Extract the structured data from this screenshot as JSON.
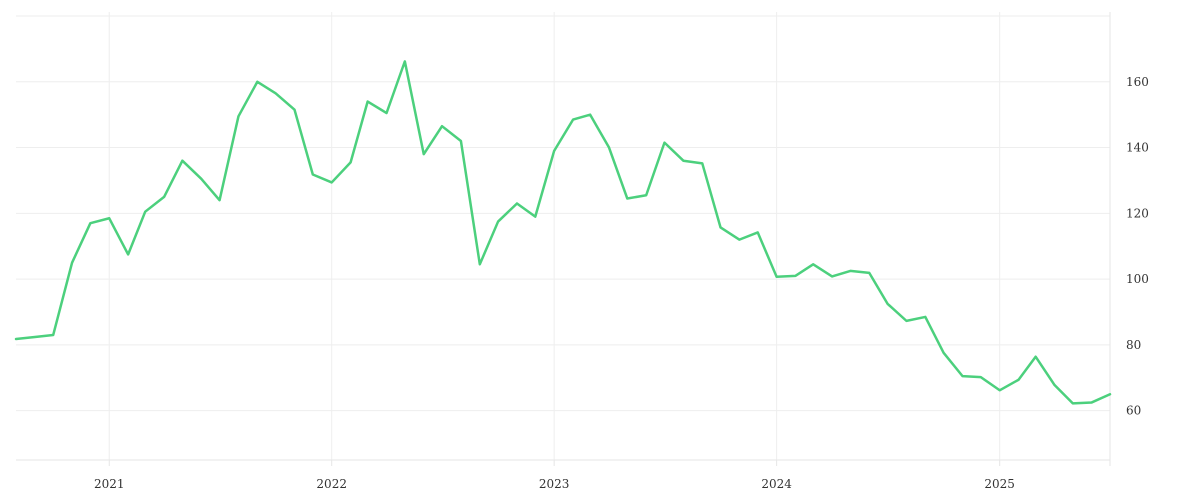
{
  "chart_data": {
    "type": "line",
    "title": "",
    "xlabel": "",
    "ylabel": "",
    "xlim": [
      "2020-08-01",
      "2025-07-01"
    ],
    "ylim": [
      45,
      180
    ],
    "grid": true,
    "legend": "none",
    "x_ticks": [
      "2021",
      "2022",
      "2023",
      "2024",
      "2025"
    ],
    "y_ticks": [
      60,
      80,
      100,
      120,
      140,
      160
    ],
    "y_axis_position": "right",
    "series": [
      {
        "color": "#4cd07d",
        "x": [
          "2020-08-01",
          "2020-09-01",
          "2020-10-01",
          "2020-11-01",
          "2020-12-01",
          "2021-01-01",
          "2021-02-01",
          "2021-03-01",
          "2021-04-01",
          "2021-05-01",
          "2021-06-01",
          "2021-07-01",
          "2021-08-01",
          "2021-09-01",
          "2021-10-01",
          "2021-11-01",
          "2021-12-01",
          "2022-01-01",
          "2022-02-01",
          "2022-03-01",
          "2022-04-01",
          "2022-05-01",
          "2022-06-01",
          "2022-07-01",
          "2022-08-01",
          "2022-09-01",
          "2022-10-01",
          "2022-11-01",
          "2022-12-01",
          "2023-01-01",
          "2023-02-01",
          "2023-03-01",
          "2023-04-01",
          "2023-05-01",
          "2023-06-01",
          "2023-07-01",
          "2023-08-01",
          "2023-09-01",
          "2023-10-01",
          "2023-11-01",
          "2023-12-01",
          "2024-01-01",
          "2024-02-01",
          "2024-03-01",
          "2024-04-01",
          "2024-05-01",
          "2024-06-01",
          "2024-07-01",
          "2024-08-01",
          "2024-09-01",
          "2024-10-01",
          "2024-11-01",
          "2024-12-01",
          "2025-01-01",
          "2025-02-01",
          "2025-03-01",
          "2025-04-01",
          "2025-05-01",
          "2025-06-01",
          "2025-07-01"
        ],
        "y": [
          81.8,
          82.4,
          83,
          105,
          117,
          118.5,
          107.5,
          120.5,
          125,
          136,
          130.5,
          124,
          149.5,
          160,
          156.5,
          151.5,
          131.8,
          129.4,
          135.5,
          154,
          150.5,
          166.2,
          138,
          146.5,
          142,
          104.5,
          117.5,
          123,
          119,
          139,
          148.5,
          150,
          140,
          124.5,
          125.5,
          141.5,
          136,
          135.2,
          115.7,
          112,
          114.2,
          100.7,
          101,
          104.5,
          100.8,
          102.5,
          101.9,
          92.5,
          87.3,
          88.5,
          77.6,
          70.5,
          70.2,
          66.2,
          69.4,
          76.4,
          67.8,
          62.2,
          62.5,
          65
        ]
      }
    ]
  }
}
